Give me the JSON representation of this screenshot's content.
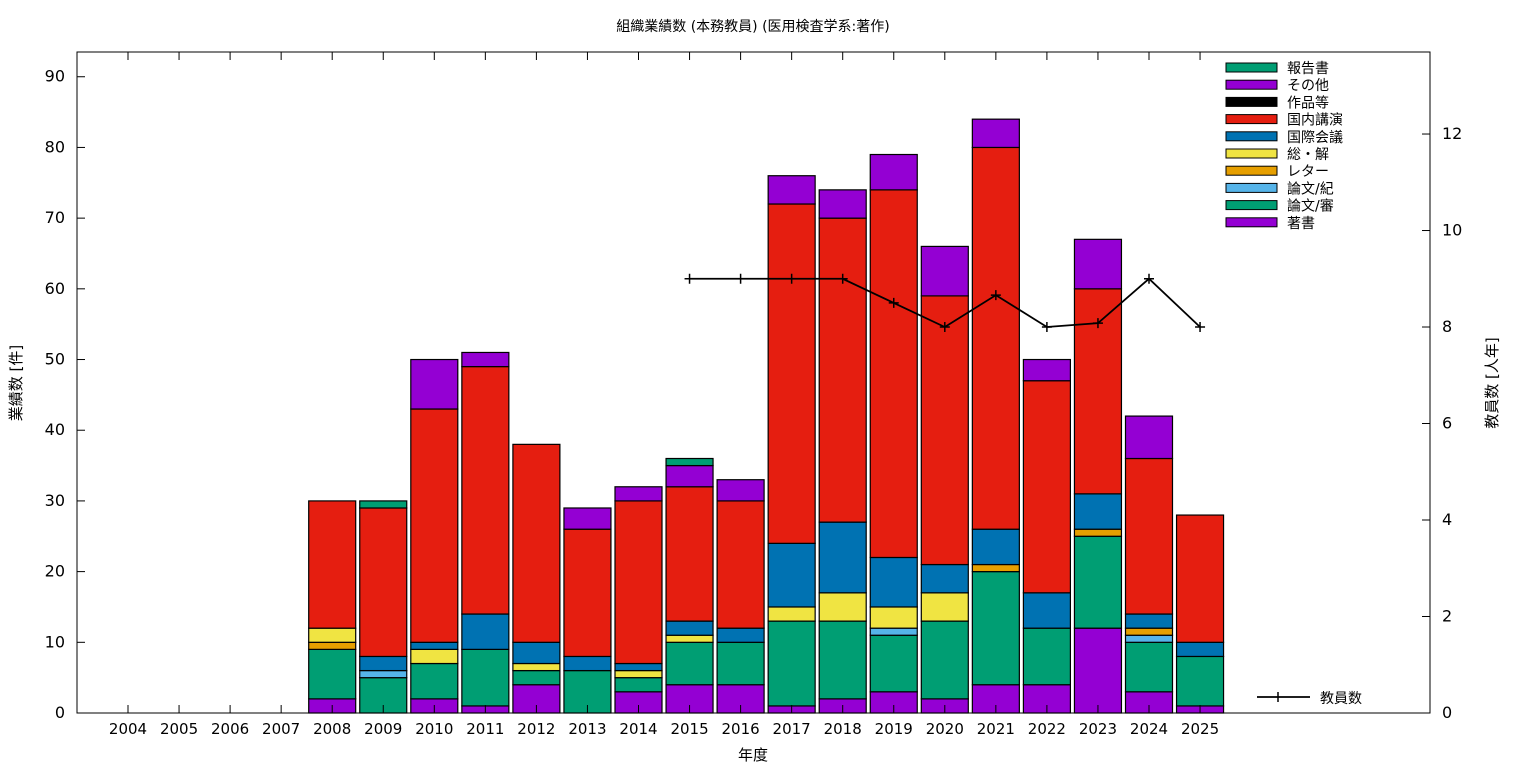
{
  "chart_data": {
    "type": "bar",
    "stacked": true,
    "title": "組織業績数 (本務教員) (医用検査学系:著作)",
    "xlabel": "年度",
    "ylabel": "業績数 [件]",
    "y2label": "教員数 [人年]",
    "ylim": [
      0,
      93.5
    ],
    "y2lim": [
      0,
      13.7
    ],
    "yticks": [
      0,
      10,
      20,
      30,
      40,
      50,
      60,
      70,
      80,
      90
    ],
    "y2ticks": [
      0,
      2,
      4,
      6,
      8,
      10,
      12
    ],
    "legend_position": "top-right",
    "categories": [
      "2004",
      "2005",
      "2006",
      "2007",
      "2008",
      "2009",
      "2010",
      "2011",
      "2012",
      "2013",
      "2014",
      "2015",
      "2016",
      "2017",
      "2018",
      "2019",
      "2020",
      "2021",
      "2022",
      "2023",
      "2024",
      "2025"
    ],
    "series": [
      {
        "name": "著書",
        "color": "#9400d3",
        "values": [
          0,
          0,
          0,
          0,
          2,
          0,
          2,
          1,
          4,
          0,
          3,
          4,
          4,
          1,
          2,
          3,
          2,
          4,
          4,
          12,
          3,
          1
        ]
      },
      {
        "name": "論文/審",
        "color": "#009e73",
        "values": [
          0,
          0,
          0,
          0,
          7,
          5,
          5,
          8,
          2,
          6,
          2,
          6,
          6,
          12,
          11,
          8,
          11,
          16,
          8,
          13,
          7,
          7
        ]
      },
      {
        "name": "論文/紀",
        "color": "#56b4e9",
        "values": [
          0,
          0,
          0,
          0,
          0,
          1,
          0,
          0,
          0,
          0,
          0,
          0,
          0,
          0,
          0,
          1,
          0,
          0,
          0,
          0,
          1,
          0
        ]
      },
      {
        "name": "レター",
        "color": "#e69f00",
        "values": [
          0,
          0,
          0,
          0,
          1,
          0,
          0,
          0,
          0,
          0,
          0,
          0,
          0,
          0,
          0,
          0,
          0,
          1,
          0,
          1,
          1,
          0
        ]
      },
      {
        "name": "総・解",
        "color": "#f0e442",
        "values": [
          0,
          0,
          0,
          0,
          2,
          0,
          2,
          0,
          1,
          0,
          1,
          1,
          0,
          2,
          4,
          3,
          4,
          0,
          0,
          0,
          0,
          0
        ]
      },
      {
        "name": "国際会議",
        "color": "#0072b2",
        "values": [
          0,
          0,
          0,
          0,
          0,
          2,
          1,
          5,
          3,
          2,
          1,
          2,
          2,
          9,
          10,
          7,
          4,
          5,
          5,
          5,
          2,
          2
        ]
      },
      {
        "name": "国内講演",
        "color": "#e51e10",
        "values": [
          0,
          0,
          0,
          0,
          18,
          21,
          33,
          35,
          28,
          18,
          23,
          19,
          18,
          48,
          43,
          52,
          38,
          54,
          30,
          29,
          22,
          18
        ]
      },
      {
        "name": "作品等",
        "color": "#000000",
        "values": [
          0,
          0,
          0,
          0,
          0,
          0,
          0,
          0,
          0,
          0,
          0,
          0,
          0,
          0,
          0,
          0,
          0,
          0,
          0,
          0,
          0,
          0
        ]
      },
      {
        "name": "その他",
        "color": "#9400d3",
        "values": [
          0,
          0,
          0,
          0,
          0,
          0,
          7,
          2,
          0,
          3,
          2,
          3,
          3,
          4,
          4,
          5,
          7,
          4,
          3,
          7,
          6,
          0
        ]
      },
      {
        "name": "報告書",
        "color": "#009e73",
        "values": [
          0,
          0,
          0,
          0,
          0,
          1,
          0,
          0,
          0,
          0,
          0,
          1,
          0,
          0,
          0,
          0,
          0,
          0,
          0,
          0,
          0,
          0
        ]
      }
    ],
    "line_series": {
      "name": "教員数",
      "axis": "y2",
      "color": "#000000",
      "x": [
        "2015",
        "2016",
        "2017",
        "2018",
        "2019",
        "2020",
        "2021",
        "2022",
        "2023",
        "2024",
        "2025"
      ],
      "values": [
        9,
        9,
        9,
        9,
        8.5,
        8,
        8.66,
        8,
        8.08,
        9,
        8
      ]
    }
  }
}
